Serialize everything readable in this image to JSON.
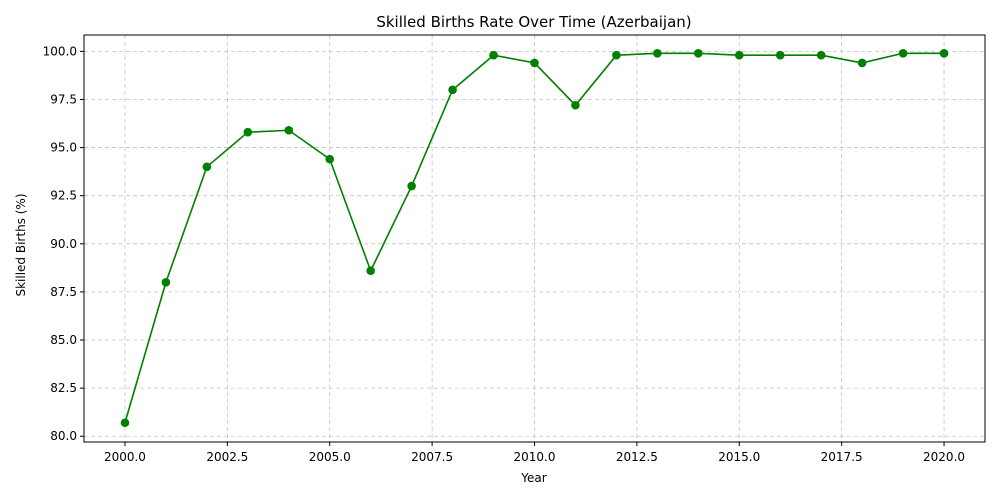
{
  "chart_data": {
    "type": "line",
    "title": "Skilled Births Rate Over Time (Azerbaijan)",
    "xlabel": "Year",
    "ylabel": "Skilled Births (%)",
    "xlim": [
      1999.0,
      2021.0
    ],
    "ylim": [
      79.7,
      100.85
    ],
    "xticks": [
      "2000.0",
      "2002.5",
      "2005.0",
      "2007.5",
      "2010.0",
      "2012.5",
      "2015.0",
      "2017.5",
      "2020.0"
    ],
    "xtick_values": [
      2000.0,
      2002.5,
      2005.0,
      2007.5,
      2010.0,
      2012.5,
      2015.0,
      2017.5,
      2020.0
    ],
    "yticks": [
      "80.0",
      "82.5",
      "85.0",
      "87.5",
      "90.0",
      "92.5",
      "95.0",
      "97.5",
      "100.0"
    ],
    "ytick_values": [
      80.0,
      82.5,
      85.0,
      87.5,
      90.0,
      92.5,
      95.0,
      97.5,
      100.0
    ],
    "grid": true,
    "color": "#008000",
    "series": [
      {
        "x": [
          2000,
          2001,
          2002,
          2003,
          2004,
          2005,
          2006,
          2007,
          2008,
          2009,
          2010,
          2011,
          2012,
          2013,
          2014,
          2015,
          2016,
          2017,
          2018,
          2019,
          2020
        ],
        "values": [
          80.7,
          88.0,
          94.0,
          95.8,
          95.9,
          94.4,
          88.6,
          93.0,
          98.0,
          99.8,
          99.4,
          97.2,
          99.8,
          99.9,
          99.9,
          99.8,
          99.8,
          99.8,
          99.4,
          99.9,
          99.9
        ]
      }
    ]
  }
}
